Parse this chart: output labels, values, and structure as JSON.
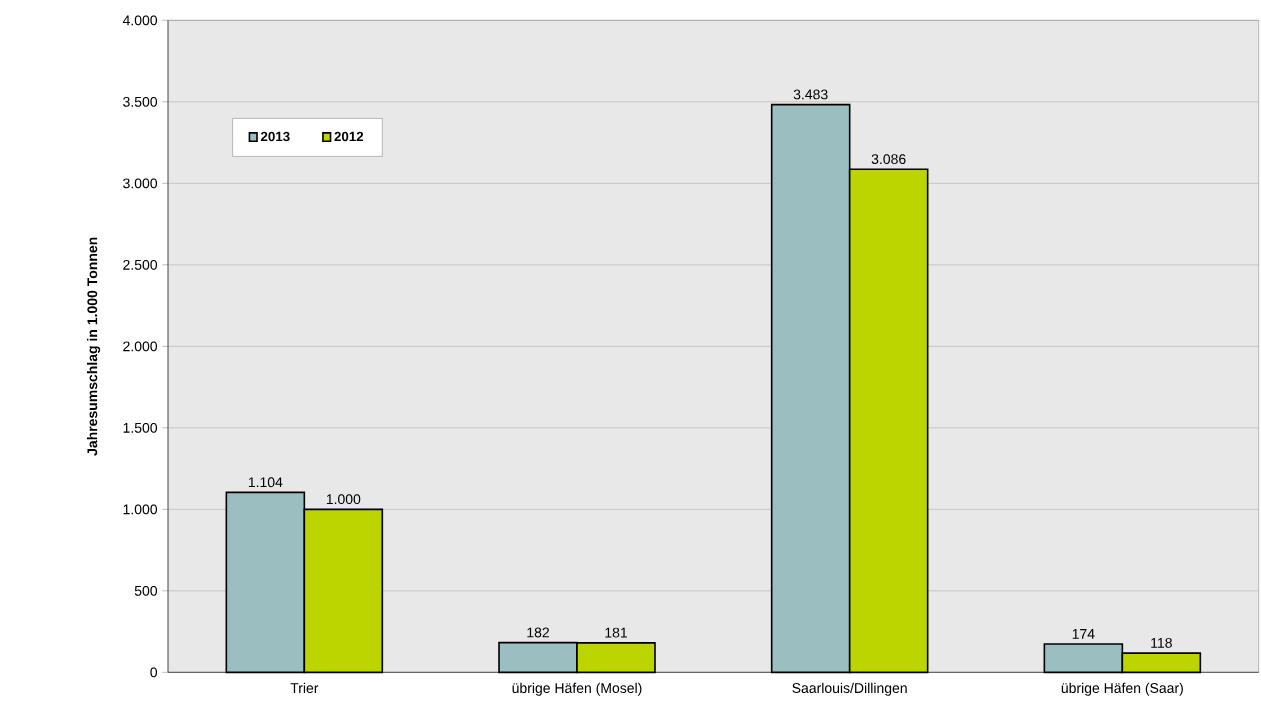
{
  "chart_data": {
    "type": "bar",
    "ylabel": "Jahresumschlag in 1.000 Tonnen",
    "categories": [
      "Trier",
      "übrige Häfen (Mosel)",
      "Saarlouis/Dillingen",
      "übrige Häfen (Saar)"
    ],
    "series": [
      {
        "name": "2013",
        "color": "#9bbfc0",
        "values": [
          1104,
          182,
          3483,
          174
        ],
        "value_labels": [
          "1.104",
          "182",
          "3.483",
          "174"
        ]
      },
      {
        "name": "2012",
        "color": "#bcd400",
        "values": [
          1000,
          181,
          3086,
          118
        ],
        "value_labels": [
          "1.000",
          "181",
          "3.086",
          "118"
        ]
      }
    ],
    "ylim": [
      0,
      4000
    ],
    "yticks": [
      0,
      500,
      {
        "value": 1000,
        "label": "1.000"
      },
      {
        "value": 1500,
        "label": "1.500"
      },
      {
        "value": 2000,
        "label": "2.000"
      },
      {
        "value": 2500,
        "label": "2.500"
      },
      {
        "value": 3000,
        "label": "3.000"
      },
      {
        "value": 3500,
        "label": "3.500"
      },
      {
        "value": 4000,
        "label": "4.000"
      }
    ],
    "grid": "y",
    "legend": "top left"
  }
}
